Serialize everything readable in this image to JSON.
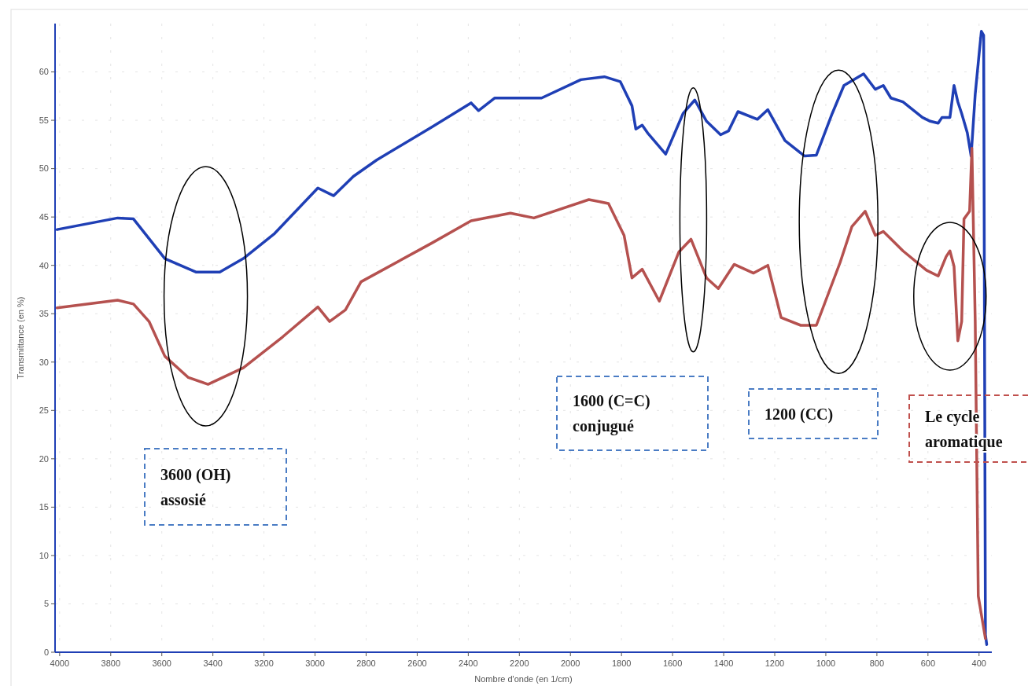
{
  "chart_data": {
    "type": "line",
    "xlabel": "Nombre d'onde (en 1/cm)",
    "ylabel": "Transmittance (en %)",
    "xlim": [
      4018,
      350
    ],
    "ylim": [
      0,
      65
    ],
    "xticks": [
      4000,
      3800,
      3600,
      3400,
      3200,
      3000,
      2800,
      2600,
      2400,
      2200,
      2000,
      1800,
      1600,
      1400,
      1200,
      1000,
      800,
      600,
      400
    ],
    "yticks": [
      0,
      5,
      10,
      15,
      20,
      25,
      30,
      35,
      40,
      45,
      50,
      55,
      60
    ],
    "grid": true,
    "marker": "none",
    "line_style": "solid",
    "series": [
      {
        "color": "#1f3fb5",
        "x": [
          4010,
          3773,
          3711,
          3588,
          3465,
          3373,
          3281,
          3158,
          2989,
          2927,
          2850,
          2758,
          2543,
          2389,
          2360,
          2297,
          2113,
          1959,
          1867,
          1805,
          1759,
          1744,
          1719,
          1698,
          1627,
          1559,
          1513,
          1467,
          1412,
          1381,
          1344,
          1268,
          1227,
          1160,
          1083,
          1037,
          975,
          929,
          852,
          806,
          775,
          745,
          698,
          622,
          591,
          560,
          545,
          514,
          498,
          483,
          468,
          446,
          431,
          415,
          400,
          391,
          382,
          375,
          370
        ],
        "values": [
          43.7,
          44.9,
          44.8,
          40.7,
          39.3,
          39.3,
          40.7,
          43.3,
          48.0,
          47.2,
          49.2,
          50.9,
          54.3,
          56.8,
          56.0,
          57.3,
          57.3,
          59.2,
          59.5,
          59.0,
          56.5,
          54.1,
          54.5,
          53.7,
          51.5,
          55.7,
          57.1,
          54.9,
          53.5,
          53.9,
          55.9,
          55.1,
          56.1,
          52.9,
          51.3,
          51.4,
          55.7,
          58.6,
          59.8,
          58.2,
          58.6,
          57.3,
          56.9,
          55.3,
          54.9,
          54.7,
          55.3,
          55.3,
          58.6,
          56.9,
          55.7,
          53.7,
          51.3,
          57.7,
          61.8,
          64.2,
          63.8,
          1.8,
          0.8
        ]
      },
      {
        "color": "#b5514f",
        "x": [
          4010,
          3773,
          3711,
          3650,
          3588,
          3496,
          3419,
          3281,
          3127,
          2989,
          2943,
          2881,
          2820,
          2543,
          2389,
          2235,
          2143,
          1928,
          1851,
          1790,
          1759,
          1719,
          1652,
          1575,
          1528,
          1467,
          1421,
          1359,
          1283,
          1227,
          1175,
          1098,
          1037,
          944,
          898,
          846,
          806,
          775,
          698,
          606,
          560,
          529,
          514,
          498,
          483,
          468,
          459,
          437,
          428,
          415,
          403,
          375
        ],
        "values": [
          35.6,
          36.4,
          36.0,
          34.2,
          30.6,
          28.4,
          27.7,
          29.4,
          32.6,
          35.7,
          34.2,
          35.4,
          38.3,
          42.3,
          44.6,
          45.4,
          44.9,
          46.8,
          46.4,
          43.1,
          38.7,
          39.6,
          36.3,
          41.4,
          42.7,
          38.7,
          37.6,
          40.1,
          39.2,
          40.0,
          34.6,
          33.8,
          33.8,
          40.3,
          44.0,
          45.6,
          43.1,
          43.5,
          41.5,
          39.5,
          38.9,
          40.9,
          41.5,
          39.9,
          32.2,
          34.2,
          44.8,
          45.6,
          52.1,
          34.2,
          5.8,
          1.4
        ]
      }
    ],
    "annotations": [
      "3600 (OH) assosié",
      "1600 (C=C) conjugué",
      "1200 (CC)",
      "Le cycle aromatique"
    ]
  }
}
